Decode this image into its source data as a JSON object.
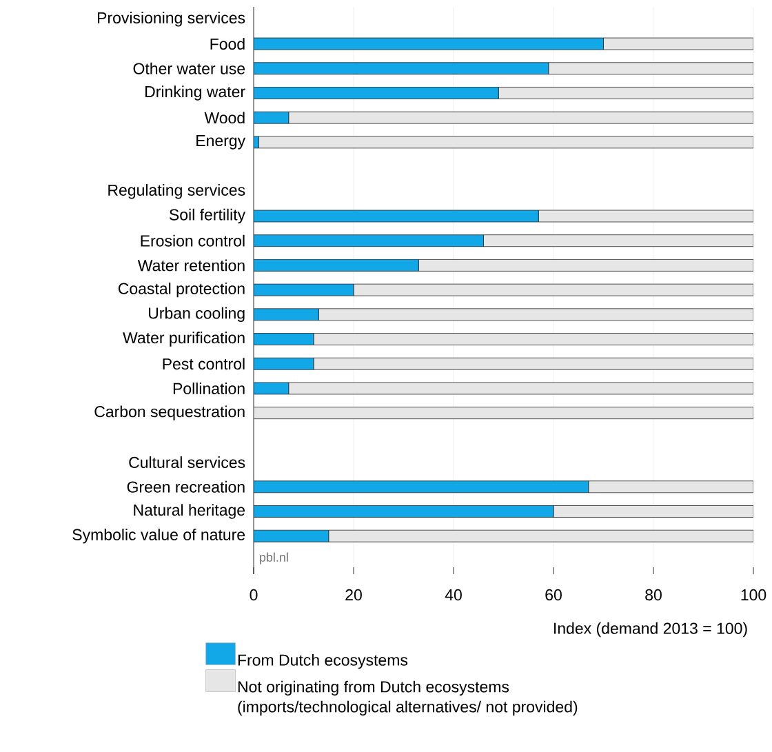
{
  "chart_data": {
    "type": "bar",
    "orientation": "horizontal",
    "stacked": true,
    "categories": [
      "Provisioning services",
      "Food",
      "Other water use",
      "Drinking water",
      "Wood",
      "Energy",
      null,
      "Regulating services",
      "Soil fertility",
      "Erosion control",
      "Water retention",
      "Coastal protection",
      "Urban cooling",
      "Water purification",
      "Pest control",
      "Pollination",
      "Carbon sequestration",
      null,
      "Cultural services",
      "Green recreation",
      "Natural heritage",
      "Symbolic value of nature"
    ],
    "series": [
      {
        "name": "From Dutch ecosystems",
        "color": "#12a7e6",
        "values": [
          null,
          70,
          59,
          49,
          7,
          1,
          null,
          null,
          57,
          46,
          33,
          20,
          13,
          12,
          12,
          7,
          0,
          null,
          null,
          67,
          60,
          15
        ]
      },
      {
        "name": "Not originating from Dutch ecosystems (imports/technological alternatives/ not provided)",
        "color": "#e6e6e6",
        "values": [
          null,
          30,
          41,
          51,
          93,
          99,
          null,
          null,
          43,
          54,
          67,
          80,
          87,
          88,
          88,
          93,
          100,
          null,
          null,
          33,
          40,
          85
        ]
      }
    ],
    "xlim": [
      0,
      100
    ],
    "xticks": [
      0,
      20,
      40,
      60,
      80,
      100
    ],
    "xlabel": "Index (demand 2013 = 100)",
    "annotations": [
      "pbl.nl"
    ],
    "grid": "x",
    "legend": "bottom"
  }
}
